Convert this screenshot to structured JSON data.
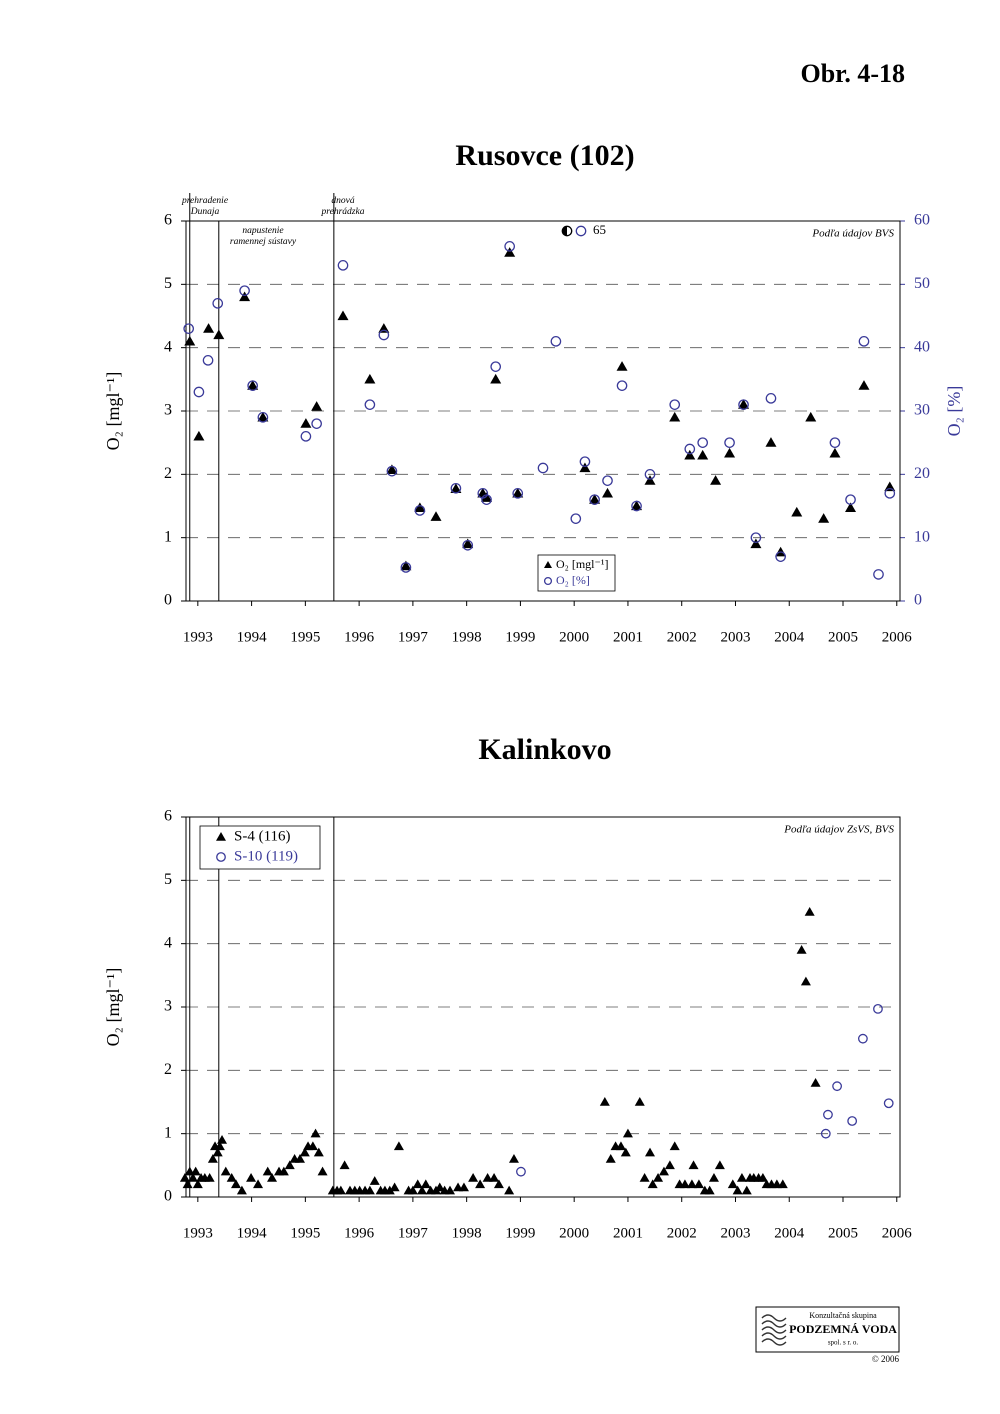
{
  "document": {
    "figure_label": "Obr. 4-18"
  },
  "chart_data": [
    {
      "type": "scatter",
      "title": "Rusovce (102)",
      "y_label": "O₂ [mgl⁻¹]",
      "y2_label": "O₂ [%]",
      "source": "Podľa údajov BVS",
      "offscale_value": 65,
      "xlim": [
        1992.78,
        2006.06
      ],
      "xticks": [
        1993,
        1994,
        1995,
        1996,
        1997,
        1998,
        1999,
        2000,
        2001,
        2002,
        2003,
        2004,
        2005,
        2006
      ],
      "ylim": [
        0,
        6
      ],
      "yticks": [
        0,
        1,
        2,
        3,
        4,
        5,
        6
      ],
      "y2lim": [
        0,
        60
      ],
      "y2ticks": [
        0,
        10,
        20,
        30,
        40,
        50,
        60
      ],
      "grid": true,
      "legend": "bottom-center",
      "events": [
        {
          "x": 1992.85,
          "label": [
            "prehradenie",
            "Dunaja"
          ]
        },
        {
          "x": 1993.39,
          "label": [
            "napustenie",
            "ramennej sústavy"
          ]
        },
        {
          "x": 1995.53,
          "label": [
            "dnová",
            "prehrádzka"
          ]
        }
      ],
      "series": [
        {
          "name": "O₂ [mgl⁻¹]",
          "color": "#000000",
          "marker": "triangle",
          "x": [
            1992.85,
            1993.02,
            1993.2,
            1993.39,
            1993.87,
            1994.02,
            1994.21,
            1995.01,
            1995.21,
            1995.7,
            1996.2,
            1996.46,
            1996.61,
            1996.87,
            1997.13,
            1997.43,
            1997.8,
            1998.02,
            1998.3,
            1998.37,
            1998.54,
            1998.8,
            1998.95,
            2000.2,
            2000.38,
            2000.62,
            2000.89,
            2001.16,
            2001.41,
            2001.87,
            2002.15,
            2002.39,
            2002.63,
            2002.89,
            2003.15,
            2003.38,
            2003.66,
            2003.84,
            2004.14,
            2004.4,
            2004.64,
            2004.85,
            2005.14,
            2005.39,
            2005.87
          ],
          "values": [
            4.1,
            2.6,
            4.3,
            4.2,
            4.8,
            3.4,
            2.9,
            2.8,
            3.07,
            4.5,
            3.5,
            4.3,
            2.07,
            0.55,
            1.47,
            1.33,
            1.77,
            0.9,
            1.7,
            1.63,
            3.5,
            5.5,
            1.7,
            2.1,
            1.6,
            1.7,
            3.7,
            1.5,
            1.9,
            2.9,
            2.3,
            2.3,
            1.9,
            2.33,
            3.1,
            0.9,
            2.5,
            0.77,
            1.4,
            2.9,
            1.3,
            2.33,
            1.47,
            3.4,
            1.8
          ]
        },
        {
          "name": "O₂ [%]",
          "color": "#3a3a99",
          "marker": "circle",
          "axis": "y2",
          "x": [
            1992.83,
            1993.02,
            1993.19,
            1993.37,
            1993.87,
            1994.02,
            1994.21,
            1995.01,
            1995.21,
            1995.7,
            1996.2,
            1996.46,
            1996.61,
            1996.87,
            1997.13,
            1997.8,
            1998.02,
            1998.3,
            1998.37,
            1998.54,
            1998.8,
            1998.95,
            1999.42,
            1999.66,
            2000.03,
            2000.2,
            2000.38,
            2000.62,
            2000.89,
            2001.16,
            2001.41,
            2001.87,
            2002.15,
            2002.39,
            2002.89,
            2003.15,
            2003.38,
            2003.66,
            2003.84,
            2004.85,
            2005.14,
            2005.39,
            2005.66,
            2005.87
          ],
          "values": [
            43,
            33,
            38,
            47,
            49,
            34,
            29,
            26,
            28,
            53,
            31,
            42,
            20.5,
            5.3,
            14.3,
            17.8,
            8.8,
            17,
            16,
            37,
            56,
            17,
            21,
            41,
            13,
            22,
            16,
            19,
            34,
            15,
            20,
            31,
            24,
            25,
            25,
            31,
            10,
            32,
            7,
            25,
            16,
            41,
            4.2,
            17
          ]
        }
      ]
    },
    {
      "type": "scatter",
      "title": "Kalinkovo",
      "y_label": "O₂ [mgl⁻¹]",
      "source": "Podľa údajov ZsVS, BVS",
      "xlim": [
        1992.78,
        2006.06
      ],
      "xticks": [
        1993,
        1994,
        1995,
        1996,
        1997,
        1998,
        1999,
        2000,
        2001,
        2002,
        2003,
        2004,
        2005,
        2006
      ],
      "ylim": [
        0,
        6
      ],
      "yticks": [
        0,
        1,
        2,
        3,
        4,
        5,
        6
      ],
      "grid": true,
      "legend": "top-left",
      "events": [
        {
          "x": 1992.85
        },
        {
          "x": 1993.39
        },
        {
          "x": 1995.53
        }
      ],
      "series": [
        {
          "name": "S-4 (116)",
          "color": "#000000",
          "marker": "triangle",
          "x": [
            1992.76,
            1992.81,
            1992.85,
            1992.91,
            1992.96,
            1993.0,
            1993.06,
            1993.13,
            1993.22,
            1993.28,
            1993.32,
            1993.37,
            1993.41,
            1993.45,
            1993.52,
            1993.63,
            1993.71,
            1993.82,
            1993.99,
            1994.12,
            1994.3,
            1994.38,
            1994.51,
            1994.6,
            1994.71,
            1994.8,
            1994.9,
            1994.99,
            1995.05,
            1995.14,
            1995.19,
            1995.25,
            1995.32,
            1995.51,
            1995.59,
            1995.66,
            1995.73,
            1995.83,
            1995.92,
            1996.01,
            1996.11,
            1996.2,
            1996.29,
            1996.4,
            1996.48,
            1996.57,
            1996.66,
            1996.74,
            1996.92,
            1997.0,
            1997.09,
            1997.17,
            1997.24,
            1997.33,
            1997.43,
            1997.5,
            1997.59,
            1997.69,
            1997.84,
            1997.95,
            1998.12,
            1998.25,
            1998.39,
            1998.51,
            1998.6,
            1998.79,
            1998.88,
            2000.57,
            2000.68,
            2000.77,
            2000.87,
            2000.96,
            2001.0,
            2001.22,
            2001.31,
            2001.41,
            2001.46,
            2001.56,
            2001.67,
            2001.78,
            2001.87,
            2001.96,
            2002.06,
            2002.19,
            2002.22,
            2002.32,
            2002.43,
            2002.52,
            2002.6,
            2002.71,
            2002.95,
            2003.04,
            2003.12,
            2003.21,
            2003.27,
            2003.34,
            2003.43,
            2003.51,
            2003.58,
            2003.67,
            2003.77,
            2003.88,
            2004.23,
            2004.31,
            2004.38,
            2004.49
          ],
          "values": [
            0.3,
            0.2,
            0.4,
            0.3,
            0.4,
            0.2,
            0.3,
            0.3,
            0.3,
            0.6,
            0.8,
            0.7,
            0.8,
            0.9,
            0.4,
            0.3,
            0.2,
            0.1,
            0.3,
            0.2,
            0.4,
            0.3,
            0.4,
            0.4,
            0.5,
            0.6,
            0.6,
            0.7,
            0.8,
            0.8,
            1.0,
            0.7,
            0.4,
            0.1,
            0.1,
            0.1,
            0.5,
            0.1,
            0.1,
            0.1,
            0.1,
            0.1,
            0.25,
            0.1,
            0.1,
            0.1,
            0.15,
            0.8,
            0.1,
            0.1,
            0.2,
            0.1,
            0.2,
            0.1,
            0.1,
            0.15,
            0.1,
            0.1,
            0.15,
            0.15,
            0.3,
            0.2,
            0.3,
            0.3,
            0.2,
            0.1,
            0.6,
            1.5,
            0.6,
            0.8,
            0.8,
            0.7,
            1.0,
            1.5,
            0.3,
            0.7,
            0.2,
            0.3,
            0.4,
            0.5,
            0.8,
            0.2,
            0.2,
            0.2,
            0.5,
            0.2,
            0.1,
            0.1,
            0.3,
            0.5,
            0.2,
            0.1,
            0.3,
            0.1,
            0.3,
            0.3,
            0.3,
            0.3,
            0.2,
            0.2,
            0.2,
            0.2,
            3.9,
            3.4,
            4.5,
            1.8
          ]
        },
        {
          "name": "S-10 (119)",
          "color": "#3a3a99",
          "marker": "circle",
          "x": [
            1999.01,
            2004.68,
            2004.72,
            2004.89,
            2005.17,
            2005.37,
            2005.65,
            2005.85
          ],
          "values": [
            0.4,
            1.0,
            1.3,
            1.75,
            1.2,
            2.5,
            2.97,
            1.48
          ]
        }
      ]
    }
  ],
  "footer": {
    "group": "Konzultačná skupina",
    "company": "PODZEMNÁ VODA",
    "suffix": "spol. s r. o.",
    "copyright": "© 2006"
  }
}
